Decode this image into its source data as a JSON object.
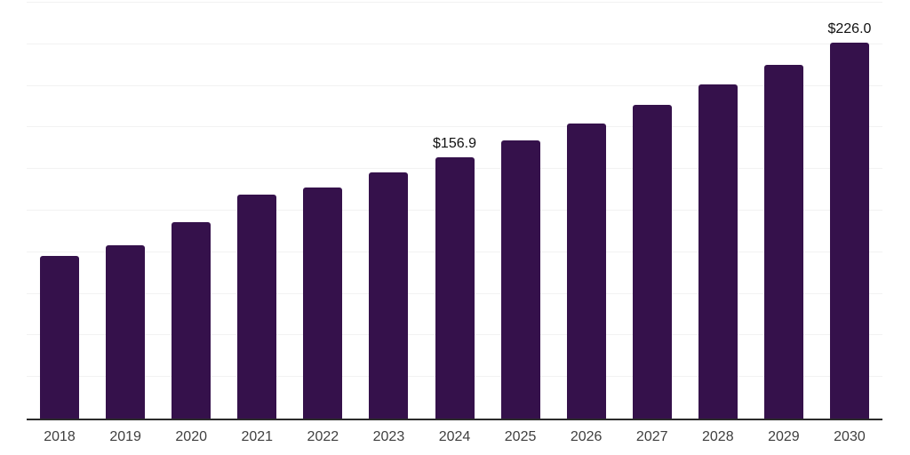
{
  "chart_data": {
    "type": "bar",
    "title": "",
    "xlabel": "",
    "ylabel": "",
    "categories": [
      "2018",
      "2019",
      "2020",
      "2021",
      "2022",
      "2023",
      "2024",
      "2025",
      "2026",
      "2027",
      "2028",
      "2029",
      "2030"
    ],
    "values": [
      97.7,
      104.1,
      118.0,
      134.5,
      139.0,
      148.1,
      156.9,
      167.1,
      177.2,
      188.7,
      200.8,
      212.6,
      226.0
    ],
    "value_labels": [
      "",
      "",
      "",
      "",
      "",
      "",
      "$156.9",
      "",
      "",
      "",
      "",
      "",
      "$226.0"
    ],
    "ylim": [
      0,
      250
    ],
    "gridline_step": 25,
    "grid": "horizontal",
    "legend": "none",
    "colors": {
      "bar": "#35114b",
      "gridline": "#f2f2f2",
      "axis_line": "#2b2b2b",
      "value_label": "#111111",
      "tick_label": "#3f3f3f",
      "background": "#ffffff"
    }
  }
}
